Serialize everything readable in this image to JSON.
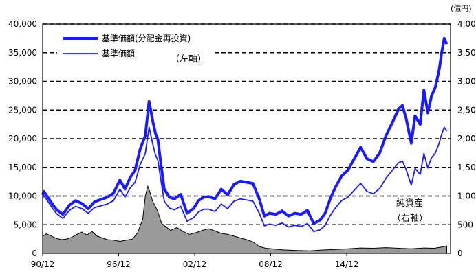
{
  "chart_data": {
    "type": "line",
    "x_ticks": [
      "90/12",
      "96/12",
      "02/12",
      "08/12",
      "14/12"
    ],
    "left_axis": {
      "ylim": [
        0,
        40000
      ],
      "ticks": [
        "0",
        "5,000",
        "10,000",
        "15,000",
        "20,000",
        "25,000",
        "30,000",
        "35,000",
        "40,000"
      ]
    },
    "right_axis": {
      "unit": "(億円)",
      "ylim": [
        0,
        4000
      ],
      "ticks": [
        "0",
        "500",
        "1,000",
        "1,500",
        "2,000",
        "2,500",
        "3,000",
        "3,500",
        "4,000"
      ]
    },
    "grid": "dashed horizontal",
    "legend_position": "top-left",
    "annotations": {
      "left_axis_note": "（左軸）",
      "net_assets_label": "純資産",
      "right_axis_note": "（右軸）"
    },
    "series": [
      {
        "name": "基準価額(分配金再投資)",
        "axis": "left",
        "color": "#1a1aff",
        "style": "thick-line",
        "x": [
          1990.9,
          1991.0,
          1991.3,
          1991.6,
          1992.0,
          1992.5,
          1993.0,
          1993.5,
          1994.0,
          1994.5,
          1995.0,
          1995.5,
          1996.0,
          1996.5,
          1997.0,
          1997.4,
          1997.8,
          1998.2,
          1998.6,
          1999.0,
          1999.3,
          1999.6,
          1999.8,
          2000.0,
          2000.2,
          2000.5,
          2000.9,
          2001.3,
          2001.8,
          2002.3,
          2002.8,
          2003.2,
          2003.6,
          2004.0,
          2004.5,
          2005.0,
          2005.5,
          2006.0,
          2006.5,
          2007.0,
          2007.5,
          2008.0,
          2008.4,
          2008.8,
          2009.3,
          2009.8,
          2010.3,
          2010.8,
          2011.3,
          2011.8,
          2012.3,
          2012.8,
          2013.2,
          2013.6,
          2014.0,
          2014.5,
          2015.0,
          2015.5,
          2016.0,
          2016.5,
          2017.0,
          2017.5,
          2018.0,
          2018.5,
          2019.0,
          2019.3,
          2019.6,
          2020.0,
          2020.3,
          2020.7,
          2021.0,
          2021.3,
          2021.6,
          2021.9,
          2022.2,
          2022.4,
          2022.6,
          2022.8
        ],
        "values": [
          10200,
          10800,
          9800,
          8800,
          7600,
          6800,
          8400,
          9200,
          8700,
          7800,
          9000,
          9400,
          9800,
          10500,
          12800,
          11200,
          13200,
          14500,
          18200,
          20500,
          26500,
          23000,
          21000,
          19800,
          16200,
          11200,
          9800,
          9500,
          10300,
          7000,
          7800,
          9200,
          9800,
          9900,
          9500,
          11200,
          10200,
          12000,
          12600,
          12400,
          12200,
          9500,
          6500,
          7000,
          6800,
          7400,
          6500,
          7000,
          6800,
          7500,
          5200,
          5800,
          7000,
          9500,
          11500,
          13500,
          14500,
          16500,
          18500,
          16500,
          16000,
          17500,
          20500,
          22800,
          25200,
          25800,
          23500,
          19200,
          24000,
          22500,
          28500,
          24500,
          27500,
          29000,
          32000,
          35000,
          37500,
          36500
        ]
      },
      {
        "name": "基準価額",
        "axis": "left",
        "color": "#1a1aff",
        "style": "thin-line",
        "x": [
          1990.9,
          1991.0,
          1991.3,
          1991.6,
          1992.0,
          1992.5,
          1993.0,
          1993.5,
          1994.0,
          1994.5,
          1995.0,
          1995.5,
          1996.0,
          1996.5,
          1997.0,
          1997.4,
          1997.8,
          1998.2,
          1998.6,
          1999.0,
          1999.3,
          1999.6,
          1999.8,
          2000.0,
          2000.2,
          2000.5,
          2000.9,
          2001.3,
          2001.8,
          2002.3,
          2002.8,
          2003.2,
          2003.6,
          2004.0,
          2004.5,
          2005.0,
          2005.5,
          2006.0,
          2006.5,
          2007.0,
          2007.5,
          2008.0,
          2008.4,
          2008.8,
          2009.3,
          2009.8,
          2010.3,
          2010.8,
          2011.3,
          2011.8,
          2012.3,
          2012.8,
          2013.2,
          2013.6,
          2014.0,
          2014.5,
          2015.0,
          2015.5,
          2016.0,
          2016.5,
          2017.0,
          2017.5,
          2018.0,
          2018.5,
          2019.0,
          2019.3,
          2019.6,
          2020.0,
          2020.3,
          2020.7,
          2021.0,
          2021.3,
          2021.6,
          2021.9,
          2022.2,
          2022.4,
          2022.6,
          2022.8
        ],
        "values": [
          9600,
          10100,
          9100,
          8100,
          6900,
          6100,
          7500,
          8200,
          7800,
          7000,
          8000,
          8300,
          8600,
          9200,
          11200,
          9800,
          11400,
          12400,
          15500,
          17400,
          22000,
          19000,
          17200,
          16200,
          13200,
          9100,
          7900,
          7600,
          8200,
          5600,
          6200,
          7200,
          7700,
          7700,
          7300,
          8600,
          7800,
          9100,
          9500,
          9300,
          9100,
          7000,
          4800,
          5100,
          4900,
          5300,
          4600,
          4900,
          4700,
          5200,
          3800,
          4100,
          4900,
          6600,
          7900,
          9200,
          9800,
          11000,
          12200,
          10800,
          10400,
          11300,
          13100,
          14500,
          15800,
          16100,
          14600,
          11900,
          14800,
          13800,
          17400,
          14900,
          16700,
          17500,
          19200,
          20800,
          22000,
          21300
        ]
      },
      {
        "name": "純資産",
        "axis": "right",
        "color": "#9a9a9a",
        "style": "area",
        "x": [
          1990.9,
          1991.2,
          1991.6,
          1992.0,
          1992.4,
          1992.8,
          1993.2,
          1993.6,
          1994.0,
          1994.4,
          1994.8,
          1995.2,
          1995.6,
          1996.0,
          1996.5,
          1997.0,
          1997.5,
          1998.0,
          1998.4,
          1998.8,
          1999.0,
          1999.2,
          1999.4,
          1999.6,
          1999.8,
          2000.0,
          2000.3,
          2000.6,
          2001.0,
          2001.5,
          2002.0,
          2002.5,
          2003.0,
          2003.5,
          2004.0,
          2004.5,
          2005.0,
          2005.5,
          2006.0,
          2006.5,
          2007.0,
          2007.5,
          2008.0,
          2008.5,
          2009.0,
          2009.5,
          2010.0,
          2011.0,
          2012.0,
          2013.0,
          2014.0,
          2015.0,
          2016.0,
          2017.0,
          2018.0,
          2019.0,
          2020.0,
          2021.0,
          2021.8,
          2022.4,
          2022.8
        ],
        "values": [
          300,
          340,
          300,
          260,
          240,
          250,
          280,
          330,
          370,
          320,
          380,
          300,
          270,
          240,
          230,
          210,
          230,
          250,
          360,
          600,
          1000,
          1170,
          1050,
          900,
          820,
          720,
          520,
          470,
          400,
          450,
          380,
          330,
          360,
          400,
          430,
          390,
          350,
          330,
          300,
          270,
          240,
          200,
          120,
          90,
          80,
          70,
          60,
          50,
          45,
          60,
          70,
          80,
          95,
          90,
          100,
          90,
          80,
          95,
          90,
          110,
          130
        ]
      }
    ]
  }
}
